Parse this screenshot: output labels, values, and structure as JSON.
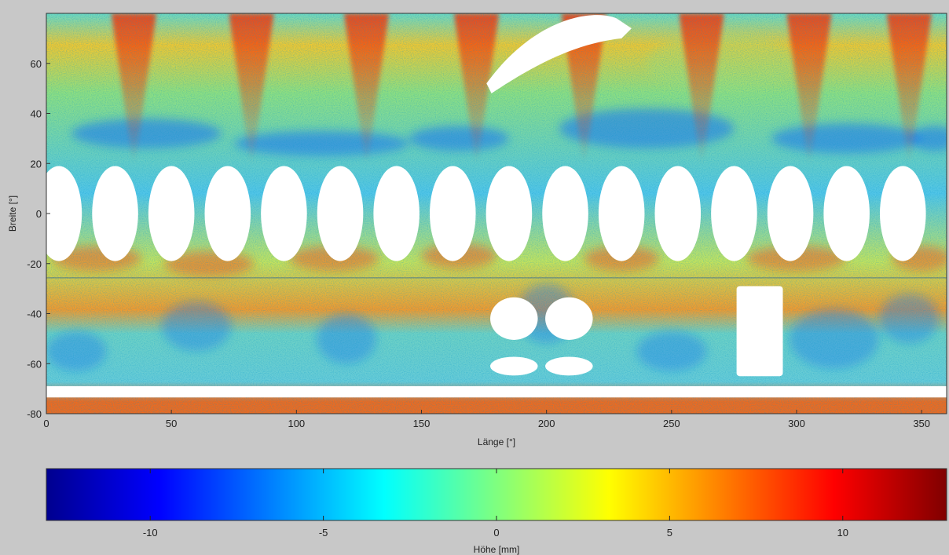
{
  "chart_data": {
    "type": "heatmap",
    "title": "",
    "xlabel": "Länge [°]",
    "ylabel": "Breite [°]",
    "xlim": [
      0,
      360
    ],
    "ylim": [
      -80,
      80
    ],
    "x_ticks": [
      "0",
      "50",
      "100",
      "150",
      "200",
      "250",
      "300",
      "350"
    ],
    "y_ticks": [
      "60",
      "40",
      "20",
      "0",
      "-20",
      "-40",
      "-60",
      "-80"
    ],
    "colorbar": {
      "label": "Höhe [mm]",
      "range": [
        -13,
        13
      ],
      "ticks": [
        "-10",
        "-5",
        "0",
        "5",
        "10"
      ],
      "colormap": "jet"
    },
    "features": {
      "warm_streak_longitudes": [
        35,
        82,
        128,
        172,
        215,
        262,
        305,
        345
      ],
      "cool_band_latitude": 30,
      "window_row": {
        "count": 16,
        "lat_center": 0,
        "lat_halfwidth": 19,
        "lon_step": 22.5,
        "lon_start": 5
      },
      "masked_regions": [
        "porthole-windows",
        "upper-hatch",
        "lower-circular-cutouts",
        "lower-rectangular-cutout",
        "floor-strip"
      ]
    }
  }
}
